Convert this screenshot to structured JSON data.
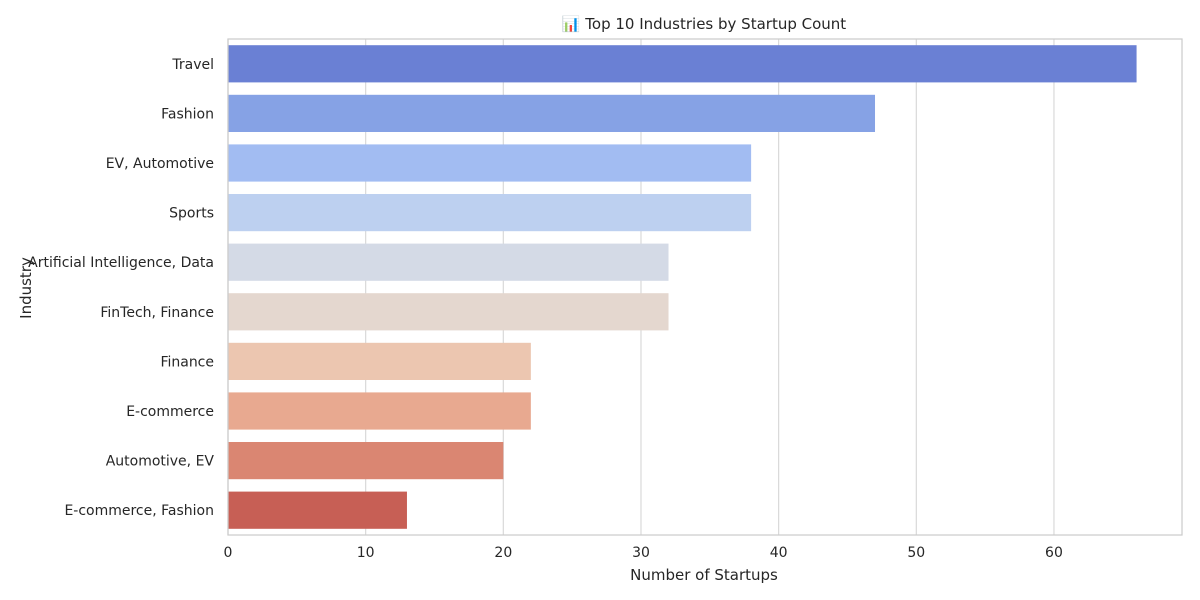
{
  "chart_data": {
    "type": "bar",
    "orientation": "horizontal",
    "title": "📊 Top 10 Industries by Startup Count",
    "xlabel": "Number of Startups",
    "ylabel": "Industry",
    "categories": [
      "Travel",
      "Fashion",
      "EV, Automotive",
      "Sports",
      "Artificial Intelligence, Data",
      "FinTech, Finance",
      "Finance",
      "E-commerce",
      "Automotive, EV",
      "E-commerce, Fashion"
    ],
    "values": [
      66,
      47,
      38,
      38,
      32,
      32,
      22,
      22,
      20,
      13
    ],
    "colors": [
      "#6a80d4",
      "#86a2e5",
      "#a2bcf2",
      "#bdd0f0",
      "#d4dae6",
      "#e4d7cf",
      "#ecc6b0",
      "#e8a990",
      "#da8672",
      "#c75f55"
    ],
    "xlim": [
      0,
      69.3
    ],
    "xticks": [
      0,
      10,
      20,
      30,
      40,
      50,
      60
    ],
    "grid": true,
    "grid_axis": "x"
  }
}
